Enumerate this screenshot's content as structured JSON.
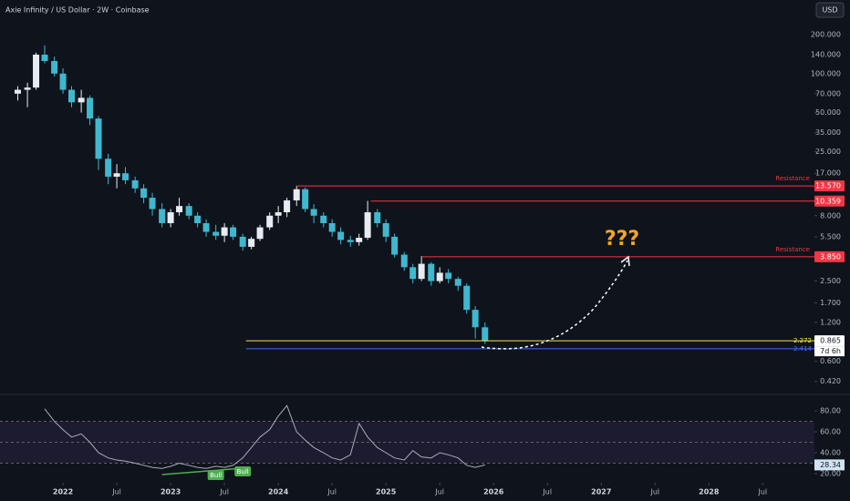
{
  "header": {
    "title": "Axie Infinity / US Dollar · 2W · Coinbase",
    "currency": "USD"
  },
  "chart_data": [
    {
      "type": "candlestick",
      "log_scale": true,
      "up_color": "#e8ecf2",
      "down_color": "#3fb8cf",
      "x": [
        2021.58,
        2021.67,
        2021.75,
        2021.83,
        2021.92,
        2022,
        2022.08,
        2022.17,
        2022.25,
        2022.33,
        2022.42,
        2022.5,
        2022.58,
        2022.67,
        2022.75,
        2022.83,
        2022.92,
        2023,
        2023.08,
        2023.17,
        2023.25,
        2023.33,
        2023.42,
        2023.5,
        2023.58,
        2023.67,
        2023.75,
        2023.83,
        2023.92,
        2024,
        2024.08,
        2024.17,
        2024.25,
        2024.33,
        2024.42,
        2024.5,
        2024.58,
        2024.67,
        2024.75,
        2024.83,
        2024.92,
        2025,
        2025.08,
        2025.17,
        2025.25,
        2025.33,
        2025.42,
        2025.5,
        2025.58,
        2025.67,
        2025.75,
        2025.83,
        2025.92
      ],
      "open": [
        70,
        75,
        78,
        140,
        125,
        100,
        75,
        60,
        65,
        45,
        22,
        16,
        17,
        15,
        13,
        11,
        9,
        7,
        8.5,
        9.5,
        8,
        7,
        6,
        5.6,
        6.5,
        5.5,
        4.6,
        5.3,
        6.5,
        8,
        8.5,
        10.5,
        12.8,
        9,
        8,
        7,
        6,
        5.2,
        5,
        5.4,
        8.5,
        7,
        5.5,
        4,
        3.2,
        2.6,
        3.4,
        2.5,
        2.9,
        2.6,
        2.3,
        1.5,
        1.1
      ],
      "high": [
        80,
        85,
        145,
        165,
        135,
        110,
        80,
        75,
        68,
        47,
        24,
        20,
        19,
        16,
        14,
        12,
        10,
        9,
        11,
        10,
        8.5,
        7.5,
        6.8,
        7,
        6.8,
        5.8,
        5.5,
        6.8,
        8.5,
        9.5,
        11,
        13.6,
        13.2,
        9.8,
        8.5,
        7.5,
        6.5,
        5.6,
        5.8,
        10.4,
        9,
        7.5,
        5.8,
        4.2,
        3.4,
        3.9,
        3.5,
        3.2,
        3.1,
        2.7,
        2.4,
        1.6,
        1.2
      ],
      "low": [
        62,
        55,
        75,
        120,
        95,
        70,
        55,
        50,
        40,
        18,
        14,
        13,
        14,
        12,
        10,
        8,
        6.5,
        6.5,
        8,
        7.5,
        6.5,
        5.5,
        5.2,
        5,
        5.2,
        4.3,
        4.4,
        5.1,
        6.2,
        7,
        7.8,
        9.5,
        8.5,
        7,
        6.5,
        5.5,
        4.8,
        4.6,
        4.7,
        5.2,
        6.5,
        5,
        3.8,
        3,
        2.4,
        2.5,
        2.3,
        2.4,
        2.4,
        2.1,
        1.4,
        0.9,
        0.82
      ],
      "close": [
        75,
        78,
        140,
        125,
        100,
        75,
        60,
        65,
        45,
        22,
        16,
        17,
        15,
        13,
        11,
        9,
        7,
        8.5,
        9.5,
        8,
        7,
        6,
        5.6,
        6.5,
        5.5,
        4.6,
        5.3,
        6.5,
        8,
        8.5,
        10.5,
        12.8,
        9,
        8,
        7,
        6,
        5.2,
        5,
        5.4,
        8.5,
        7,
        5.5,
        4,
        3.2,
        2.6,
        3.4,
        2.5,
        2.9,
        2.6,
        2.3,
        1.5,
        1.1,
        0.865
      ],
      "xlim": [
        2021.415,
        2028.98
      ],
      "xticks": [
        2022,
        {
          "value": 2022.5,
          "label": "Jul"
        },
        2023,
        {
          "value": 2023.5,
          "label": "Jul"
        },
        2024,
        {
          "value": 2024.5,
          "label": "Jul"
        },
        2025,
        {
          "value": 2025.5,
          "label": "Jul"
        },
        2026,
        {
          "value": 2026.5,
          "label": "Jul"
        },
        2027,
        {
          "value": 2027.5,
          "label": "Jul"
        },
        2028,
        {
          "value": 2028.5,
          "label": "Jul"
        }
      ],
      "ylim": [
        0.35,
        370
      ],
      "yticks": [
        {
          "value": 200,
          "label": "200.000"
        },
        {
          "value": 140,
          "label": "140.000"
        },
        {
          "value": 100,
          "label": "100.000"
        },
        {
          "value": 70,
          "label": "70.000"
        },
        {
          "value": 50,
          "label": "50.000"
        },
        {
          "value": 35,
          "label": "35.000"
        },
        {
          "value": 25,
          "label": "25.000"
        },
        {
          "value": 17,
          "label": "17.000"
        },
        {
          "value": 8,
          "label": "8.000"
        },
        {
          "value": 5.5,
          "label": "5.500"
        },
        {
          "value": 2.5,
          "label": "2.500"
        },
        {
          "value": 1.7,
          "label": "1.700"
        },
        {
          "value": 1.2,
          "label": "1.200"
        },
        {
          "value": 0.6,
          "label": "0.600"
        },
        {
          "value": 0.42,
          "label": "0.420"
        }
      ],
      "levels": [
        {
          "value": 13.57,
          "label": "13.570",
          "color": "#f23645",
          "start": 2024.17,
          "annotation": "Resistance"
        },
        {
          "value": 10.359,
          "label": "10.359",
          "color": "#f23645",
          "start": 2024.86
        },
        {
          "value": 3.85,
          "label": "3.850",
          "color": "#f23645",
          "start": 2025.33,
          "annotation": "Resistance"
        },
        {
          "value": 0.865,
          "label": "0.865",
          "color": "#f5e94a",
          "start": 2023.7,
          "side_label": "2.272",
          "countdown": "7d 6h"
        },
        {
          "value": 0.75,
          "color": "#3d6ff0",
          "start": 2023.7,
          "side_label": "2.414"
        }
      ],
      "annotation": "???"
    },
    {
      "type": "line",
      "color": "#a9adb8",
      "x": [
        2021.58,
        2021.67,
        2021.75,
        2021.83,
        2021.92,
        2022,
        2022.08,
        2022.17,
        2022.25,
        2022.33,
        2022.42,
        2022.5,
        2022.58,
        2022.67,
        2022.75,
        2022.83,
        2022.92,
        2023,
        2023.08,
        2023.17,
        2023.25,
        2023.33,
        2023.42,
        2023.5,
        2023.58,
        2023.67,
        2023.75,
        2023.83,
        2023.92,
        2024,
        2024.08,
        2024.17,
        2024.25,
        2024.33,
        2024.42,
        2024.5,
        2024.58,
        2024.67,
        2024.75,
        2024.83,
        2024.92,
        2025,
        2025.08,
        2025.17,
        2025.25,
        2025.33,
        2025.42,
        2025.5,
        2025.58,
        2025.67,
        2025.75,
        2025.83,
        2025.92
      ],
      "values": [
        null,
        null,
        null,
        82,
        70,
        62,
        55,
        58,
        50,
        40,
        35,
        33,
        32,
        30,
        28,
        26,
        25,
        27,
        30,
        28,
        26,
        25,
        27,
        26,
        28,
        35,
        45,
        55,
        62,
        75,
        85,
        60,
        52,
        45,
        40,
        35,
        33,
        38,
        68,
        55,
        45,
        40,
        35,
        33,
        42,
        36,
        35,
        40,
        38,
        35,
        28,
        26,
        28.34
      ],
      "xlim": [
        2021.415,
        2028.98
      ],
      "ylim": [
        13,
        94
      ],
      "yticks": [
        {
          "value": 80,
          "label": "80.00"
        },
        {
          "value": 60,
          "label": "60.00"
        },
        {
          "value": 40,
          "label": "40.00"
        },
        {
          "value": 20,
          "label": "20.00"
        }
      ],
      "bands": [
        70,
        50,
        30
      ],
      "divergences": [
        {
          "x": 2023.42,
          "label": "Bull"
        },
        {
          "x": 2023.67,
          "label": "Bull"
        }
      ]
    }
  ]
}
